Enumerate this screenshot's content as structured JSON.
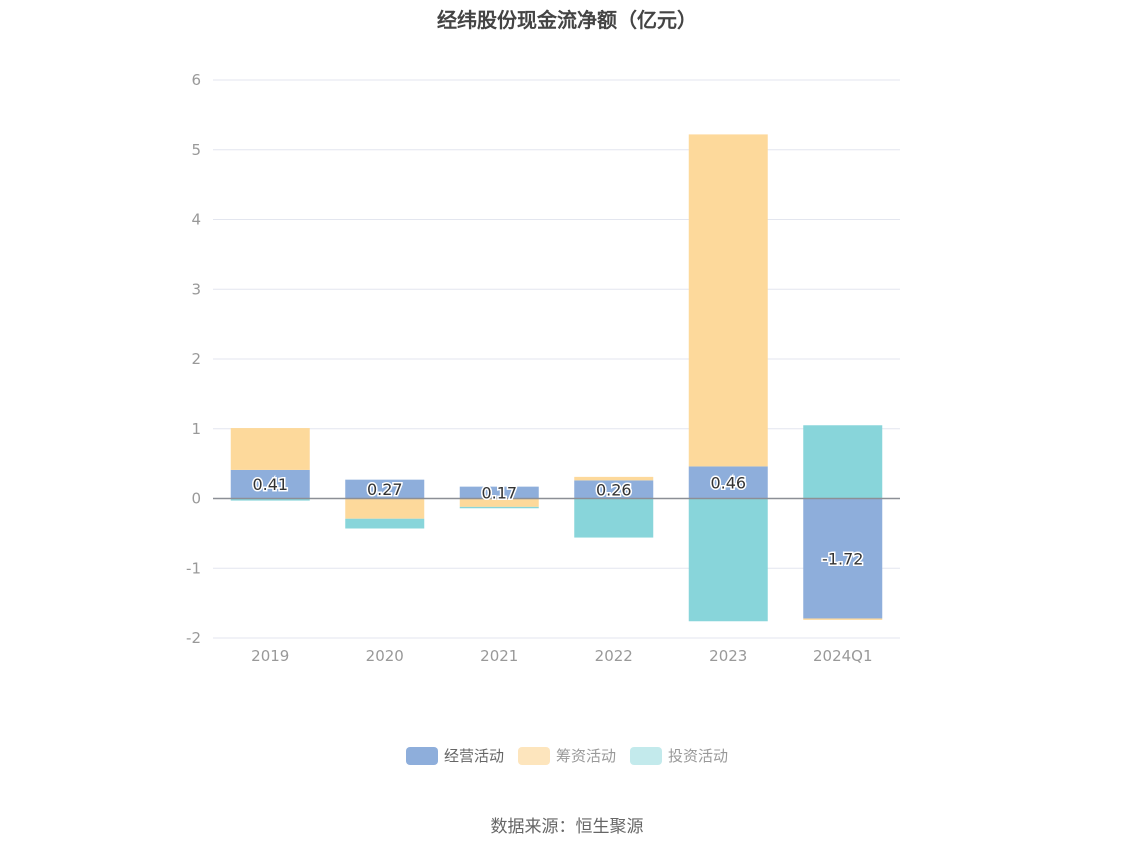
{
  "chart_data": {
    "type": "bar",
    "stacked": true,
    "title": "经纬股份现金流净额（亿元）",
    "categories": [
      "2019",
      "2020",
      "2021",
      "2022",
      "2023",
      "2024Q1"
    ],
    "series": [
      {
        "name": "经营活动",
        "values": [
          0.41,
          0.27,
          0.17,
          0.26,
          0.46,
          -1.72
        ],
        "color": "#8eaedb",
        "show_labels": true
      },
      {
        "name": "筹资活动",
        "values": [
          0.6,
          -0.29,
          -0.12,
          0.05,
          4.76,
          -0.02
        ],
        "color": "#fdd99b",
        "show_labels": false
      },
      {
        "name": "投资活动",
        "values": [
          -0.03,
          -0.14,
          -0.02,
          -0.56,
          -1.76,
          1.05
        ],
        "color": "#88d5da",
        "show_labels": false
      }
    ],
    "ylim": [
      -2,
      6
    ],
    "yticks": [
      "-2",
      "-1",
      "0",
      "1",
      "2",
      "3",
      "4",
      "5",
      "6"
    ],
    "grid": true,
    "legend_position": "bottom",
    "legend_colors": [
      "#8eaedb",
      "#fde5bd",
      "#c3eaec"
    ]
  },
  "source_text": "数据来源：恒生聚源"
}
